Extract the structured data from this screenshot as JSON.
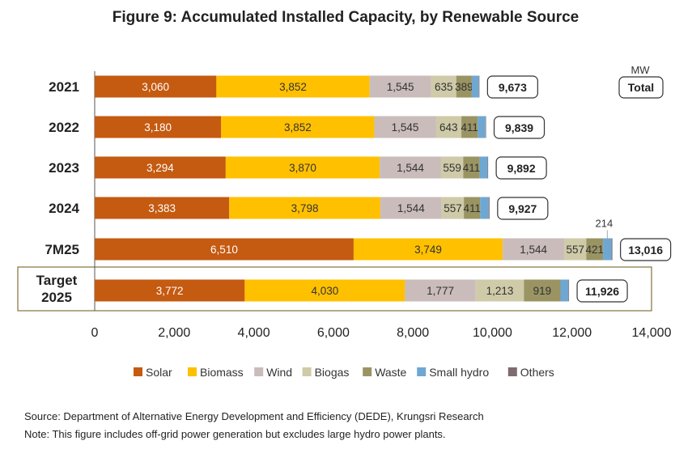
{
  "chart_data": {
    "type": "bar",
    "orientation": "horizontal",
    "stacked": true,
    "title": "Figure 9: Accumulated Installed Capacity, by Renewable Source",
    "unit": "MW",
    "total_header": "Total",
    "categories": [
      "2021",
      "2022",
      "2023",
      "2024",
      "7M25",
      "Target 2025"
    ],
    "series": [
      {
        "name": "Solar",
        "color": "#C55A11",
        "values": [
          3060,
          3180,
          3294,
          3383,
          6510,
          3772
        ],
        "labels": [
          "3,060",
          "3,180",
          "3,294",
          "3,383",
          "6,510",
          "3,772"
        ]
      },
      {
        "name": "Biomass",
        "color": "#FFC000",
        "values": [
          3852,
          3852,
          3870,
          3798,
          3749,
          4030
        ],
        "labels": [
          "3,852",
          "3,852",
          "3,870",
          "3,798",
          "3,749",
          "4,030"
        ]
      },
      {
        "name": "Wind",
        "color": "#C9BCBA",
        "values": [
          1545,
          1545,
          1544,
          1544,
          1544,
          1777
        ],
        "labels": [
          "1,545",
          "1,545",
          "1,544",
          "1,544",
          "1,544",
          "1,777"
        ]
      },
      {
        "name": "Biogas",
        "color": "#CFCAA8",
        "values": [
          635,
          643,
          559,
          557,
          557,
          1213
        ],
        "labels": [
          "635",
          "643",
          "559",
          "557",
          "557",
          "1,213"
        ]
      },
      {
        "name": "Waste",
        "color": "#9A9463",
        "values": [
          389,
          411,
          411,
          411,
          421,
          919
        ],
        "labels": [
          "389",
          "411",
          "411",
          "411",
          "421",
          "919"
        ]
      },
      {
        "name": "Small hydro",
        "color": "#6FA7D3",
        "values": [
          178,
          194,
          200,
          214,
          214,
          200
        ],
        "labels": [
          "",
          "",
          "",
          "",
          "214",
          ""
        ]
      },
      {
        "name": "Others",
        "color": "#7F6A6E",
        "values": [
          14,
          14,
          14,
          20,
          21,
          15
        ],
        "labels": [
          "",
          "",
          "",
          "",
          "",
          ""
        ]
      }
    ],
    "totals": [
      "9,673",
      "9,839",
      "9,892",
      "9,927",
      "13,016",
      "11,926"
    ],
    "xlim": [
      0,
      14000
    ],
    "xticks": [
      "0",
      "2,000",
      "4,000",
      "6,000",
      "8,000",
      "10,000",
      "12,000",
      "14,000"
    ],
    "grid": false,
    "legend_position": "bottom"
  },
  "notes": {
    "source": "Source: Department of Alternative Energy Development and Efficiency (DEDE), Krungsri Research",
    "note": "Note: This figure includes off-grid power generation but excludes large hydro power plants."
  }
}
